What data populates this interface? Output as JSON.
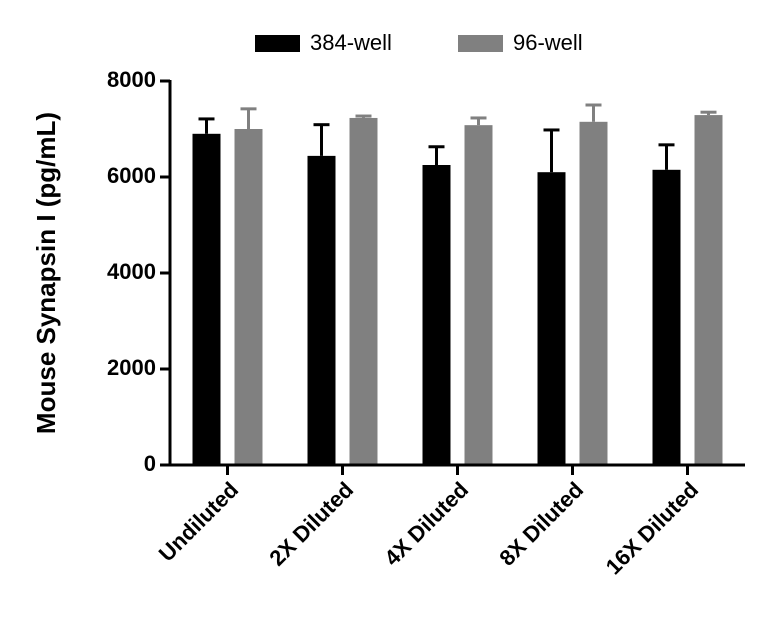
{
  "chart_data": {
    "type": "bar",
    "y_label": "Mouse Synapsin I (pg/mL)",
    "categories": [
      "Undiluted",
      "2X Diluted",
      "4X Diluted",
      "8X Diluted",
      "16X Diluted"
    ],
    "series": [
      {
        "name": "384-well",
        "color": "#000000",
        "values": [
          6900,
          6440,
          6250,
          6100,
          6150
        ],
        "errors": [
          310,
          650,
          380,
          880,
          520
        ]
      },
      {
        "name": "96-well",
        "color": "#808080",
        "values": [
          7000,
          7230,
          7080,
          7150,
          7290
        ],
        "errors": [
          420,
          40,
          150,
          350,
          60
        ]
      }
    ],
    "ylim": [
      0,
      8000
    ],
    "yticks": [
      0,
      2000,
      4000,
      6000,
      8000
    ]
  }
}
